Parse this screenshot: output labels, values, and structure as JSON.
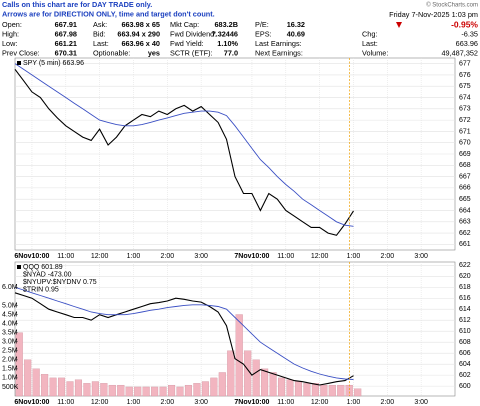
{
  "header": {
    "notice": [
      "Calls on this chart are for DAY TRADE only.",
      "Arrows are for DIRECTION ONLY, time and target don't count."
    ],
    "copyright": "© StockCharts.com",
    "date": "Friday  7-Nov-2025  1:03 pm",
    "change_pct": "-0.95%",
    "rows": [
      [
        "Open:",
        "667.91",
        "Ask:",
        "663.98 x 65",
        "Mkt Cap:",
        "683.2B",
        "P/E:",
        "16.32"
      ],
      [
        "High:",
        "667.98",
        "Bid:",
        "663.94 x 290",
        "Fwd Dividend:",
        "7.32446",
        "EPS:",
        "40.69"
      ],
      [
        "Low:",
        "661.21",
        "Last:",
        "663.96 x 40",
        "Fwd Yield:",
        "1.10%",
        "Last Earnings:"
      ],
      [
        "Prev Close:",
        "670.31",
        "Optionable:",
        "yes",
        "SCTR (ETF):",
        "77.0",
        "Next Earnings:"
      ]
    ],
    "stats": [
      [
        "Chg:",
        "-6.35"
      ],
      [
        "Last:",
        "663.96"
      ],
      [
        "Volume:",
        "49,487,352"
      ]
    ]
  },
  "chart_data": [
    {
      "type": "line",
      "legend": "top-left",
      "grid": true,
      "categories": [
        null,
        null,
        "6Nov10:00",
        null,
        null,
        null,
        "11:00",
        null,
        null,
        null,
        "12:00",
        null,
        null,
        null,
        "1:00",
        null,
        null,
        null,
        "2:00",
        null,
        null,
        null,
        "3:00",
        null,
        null,
        null,
        null,
        null,
        "7Nov10:00",
        null,
        null,
        null,
        "11:00",
        null,
        null,
        null,
        "12:00",
        null,
        null,
        null,
        "1:00",
        null,
        null,
        null,
        "2:00",
        null,
        null,
        null,
        "3:00",
        null,
        null,
        null
      ],
      "series": [
        {
          "name": "SPY (5 min) 663.96",
          "color": "#000000",
          "values": [
            676.5,
            675.5,
            674.5,
            674,
            673,
            672.2,
            671.5,
            671,
            670.5,
            670.2,
            671.2,
            669.8,
            670.5,
            671.5,
            672,
            672.5,
            672.3,
            672.8,
            672.5,
            673,
            673.3,
            672.8,
            673.2,
            672.5,
            671.8,
            670.3,
            667,
            665.5,
            665.5,
            664,
            665.5,
            665,
            664,
            663.5,
            663,
            662.5,
            662.5,
            662,
            661.8,
            662.8,
            663.96,
            null,
            null,
            null,
            null,
            null,
            null,
            null,
            null,
            null,
            null,
            null
          ]
        },
        {
          "color": "#3a4fc4",
          "values": [
            677,
            676.5,
            676,
            675.5,
            675,
            674.5,
            674,
            673.5,
            673,
            672.5,
            672,
            671.8,
            671.6,
            671.5,
            671.5,
            671.6,
            671.8,
            672,
            672.2,
            672.4,
            672.6,
            672.7,
            672.8,
            672.8,
            672.7,
            672.4,
            671.5,
            670.5,
            669.5,
            668.5,
            667.8,
            667,
            666.3,
            665.7,
            665,
            664.5,
            664,
            663.5,
            663,
            662.7,
            662.6,
            null,
            null,
            null,
            null,
            null,
            null,
            null,
            null,
            null,
            null,
            null
          ]
        }
      ],
      "ylim": [
        660.5,
        677.5
      ],
      "yticks": [
        661,
        662,
        663,
        664,
        665,
        666,
        667,
        668,
        669,
        670,
        671,
        672,
        673,
        674,
        675,
        676,
        677
      ]
    },
    {
      "type": "line",
      "legend": "top-left",
      "grid": true,
      "categories": [
        null,
        null,
        "6Nov10:00",
        null,
        null,
        null,
        "11:00",
        null,
        null,
        null,
        "12:00",
        null,
        null,
        null,
        "1:00",
        null,
        null,
        null,
        "2:00",
        null,
        null,
        null,
        "3:00",
        null,
        null,
        null,
        null,
        null,
        "7Nov10:00",
        null,
        null,
        null,
        "11:00",
        null,
        null,
        null,
        "12:00",
        null,
        null,
        null,
        "1:00",
        null,
        null,
        null,
        "2:00",
        null,
        null,
        null,
        "3:00",
        null,
        null,
        null
      ],
      "series": [
        {
          "type": "bar",
          "axis": "y2",
          "color": "#f2b5c0",
          "values": [
            3500000,
            2000000,
            1500000,
            1200000,
            1000000,
            1000000,
            800000,
            900000,
            700000,
            800000,
            700000,
            600000,
            600000,
            500000,
            500000,
            500000,
            500000,
            500000,
            600000,
            500000,
            600000,
            700000,
            800000,
            1000000,
            1300000,
            2500000,
            4500000,
            2500000,
            2000000,
            1500000,
            1300000,
            1000000,
            900000,
            800000,
            700000,
            700000,
            600000,
            600000,
            600000,
            600000,
            400000,
            null,
            null,
            null,
            null,
            null,
            null,
            null,
            null,
            null,
            null,
            null
          ]
        },
        {
          "name": "QQQ 601.89",
          "color": "#000000",
          "values": [
            617,
            616.5,
            616,
            615,
            614,
            613.5,
            613,
            612.5,
            612.5,
            612,
            613,
            612.5,
            613,
            613.5,
            614,
            614.5,
            615,
            615.2,
            615.5,
            616,
            615.8,
            615.5,
            615.3,
            614.5,
            613.5,
            611,
            605,
            604,
            602,
            603,
            602.5,
            602,
            601.5,
            601,
            600.8,
            600.5,
            600.2,
            600.5,
            600.8,
            601,
            601.89,
            null,
            null,
            null,
            null,
            null,
            null,
            null,
            null,
            null,
            null,
            null
          ]
        },
        {
          "color": "#3a4fc4",
          "values": [
            618,
            617.5,
            617,
            616.5,
            616,
            615.5,
            615,
            614.5,
            614,
            613.5,
            613.2,
            613,
            613,
            613,
            613.2,
            613.5,
            613.8,
            614,
            614.3,
            614.5,
            614.7,
            614.8,
            614.8,
            614.7,
            614.5,
            614,
            612.5,
            611,
            609.5,
            608,
            607,
            606,
            605,
            604,
            603.3,
            602.7,
            602.2,
            601.8,
            601.5,
            601.3,
            601.2,
            null,
            null,
            null,
            null,
            null,
            null,
            null,
            null,
            null,
            null,
            null
          ]
        }
      ],
      "legend_extra": [
        "$NYAD -473.00",
        "$NYUPV:$NYDNV 0.75",
        "$TRIN 0.95"
      ],
      "ylim": [
        598.2,
        622.6
      ],
      "yticks": [
        600,
        602,
        604,
        606,
        608,
        610,
        612,
        614,
        616,
        618,
        620,
        622
      ],
      "y2lim": [
        0,
        7400000
      ],
      "y2ticks": [
        {
          "value": 500000,
          "label": "500K"
        },
        {
          "value": 1000000,
          "label": "1.0M"
        },
        {
          "value": 1500000,
          "label": "1.5M"
        },
        {
          "value": 2000000,
          "label": "2.0M"
        },
        {
          "value": 2500000,
          "label": "2.5M"
        },
        {
          "value": 3000000,
          "label": "3.0M"
        },
        {
          "value": 3500000,
          "label": "3.5M"
        },
        {
          "value": 4000000,
          "label": "4.0M"
        },
        {
          "value": 4500000,
          "label": "4.5M"
        },
        {
          "value": 5000000,
          "label": "5.0M"
        },
        {
          "value": 6000000,
          "label": "6.0M"
        }
      ]
    }
  ]
}
